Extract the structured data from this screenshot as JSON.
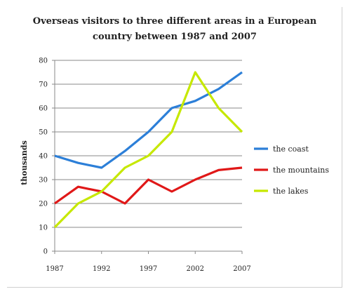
{
  "chart_data": {
    "type": "line",
    "title_line1": "Overseas visitors to three different areas in a European",
    "title_line2": "country between 1987 and 2007",
    "ylabel": "thousands",
    "xlabel": "",
    "x": [
      1987,
      1989.5,
      1992,
      1994.5,
      1997,
      1999.5,
      2002,
      2004.5,
      2007
    ],
    "x_ticks": [
      "1987",
      "1992",
      "1997",
      "2002",
      "2007"
    ],
    "x_tick_values": [
      1987,
      1992,
      1997,
      2002,
      2007
    ],
    "xlim": [
      1987,
      2007
    ],
    "y_ticks": [
      "0",
      "10",
      "20",
      "30",
      "40",
      "50",
      "60",
      "70",
      "80"
    ],
    "ylim": [
      0,
      80
    ],
    "grid": true,
    "legend_position": "right",
    "series": [
      {
        "name": "the coast",
        "color": "#2c7fd8",
        "values": [
          40,
          37,
          35,
          42,
          50,
          60,
          63,
          68,
          75
        ]
      },
      {
        "name": "the mountains",
        "color": "#e01818",
        "values": [
          20,
          27,
          25,
          20,
          30,
          25,
          30,
          34,
          35
        ]
      },
      {
        "name": "the lakes",
        "color": "#c6e800",
        "values": [
          10,
          20,
          25,
          35,
          40,
          50,
          75,
          60,
          50
        ]
      }
    ]
  }
}
